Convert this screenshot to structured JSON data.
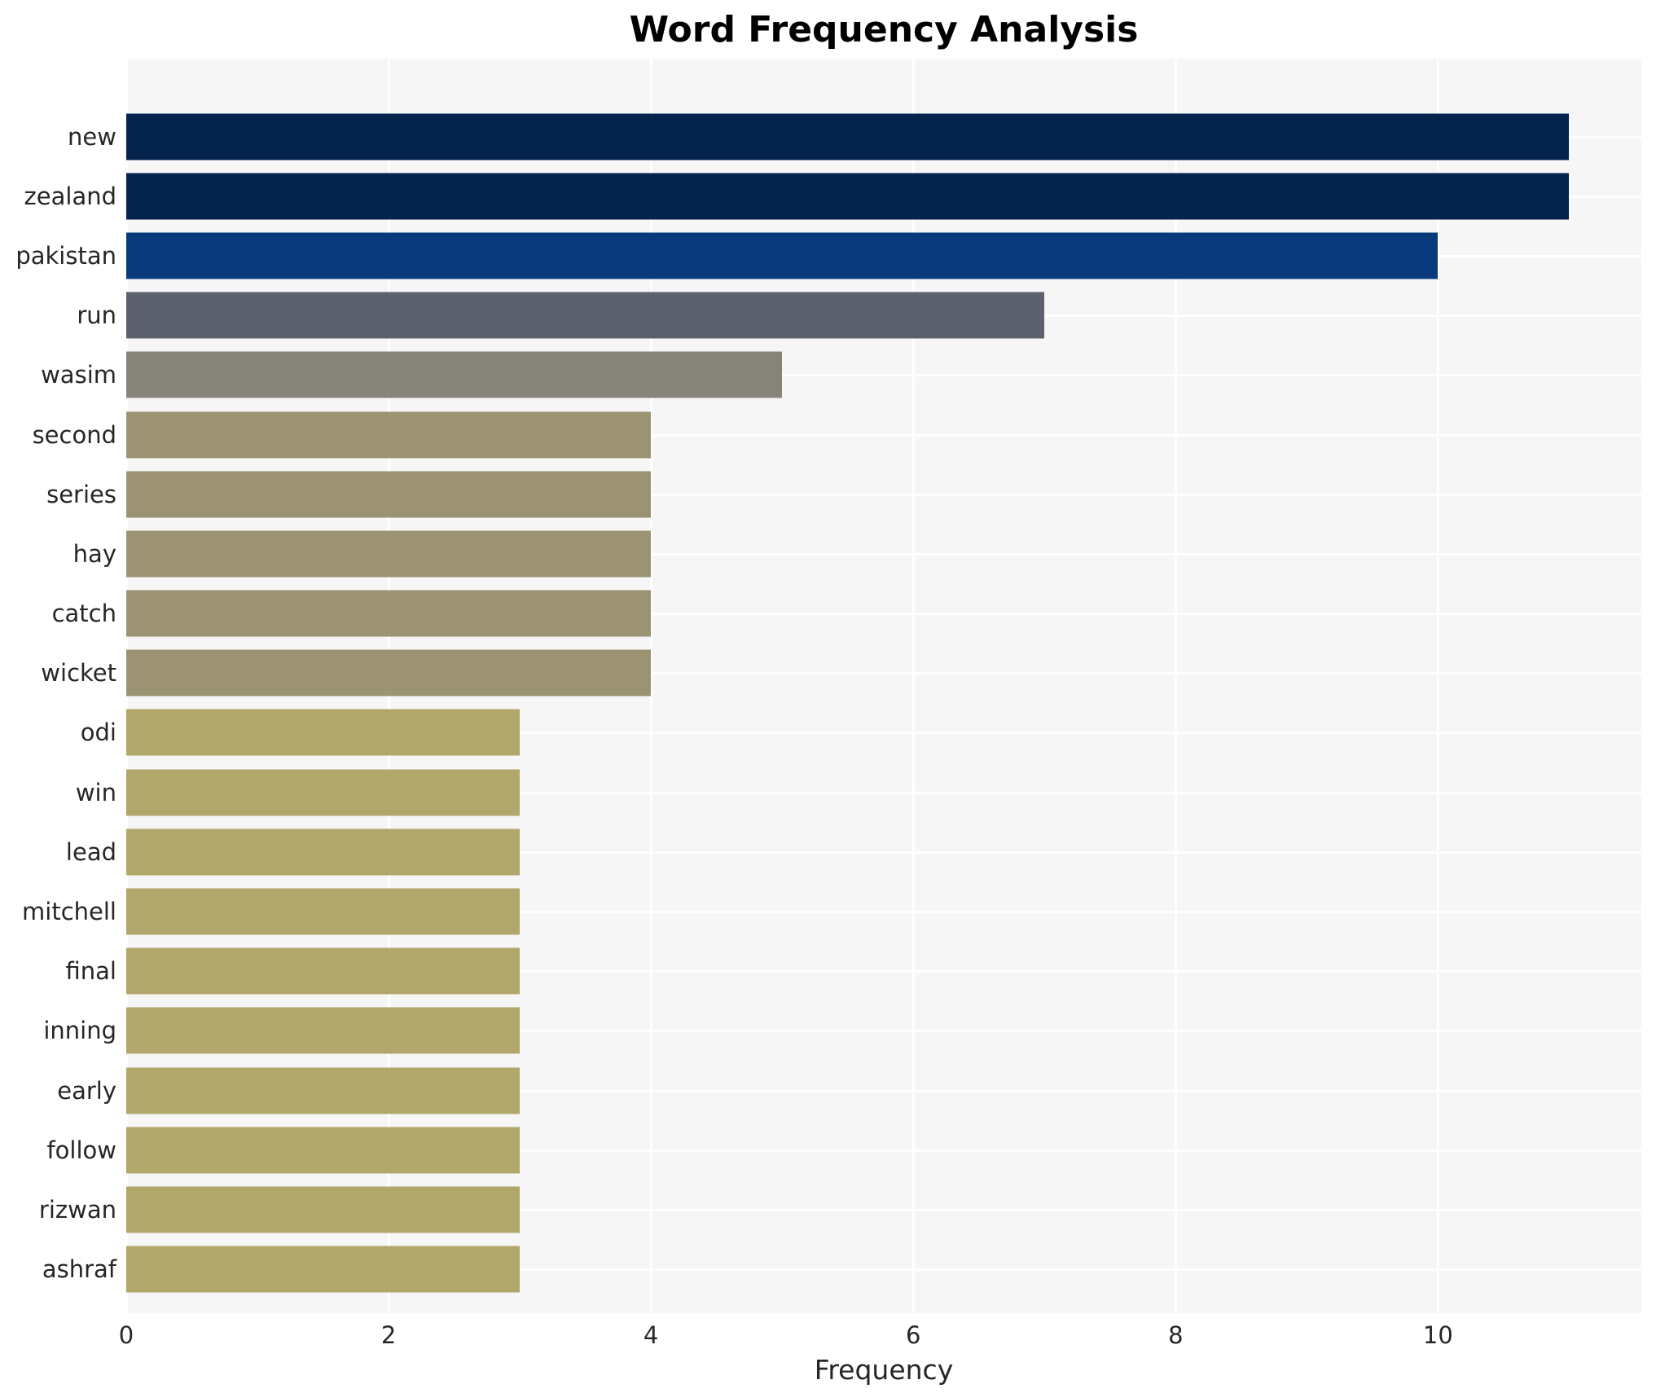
{
  "title": "Word Frequency Analysis",
  "chart_data": {
    "type": "bar",
    "orientation": "horizontal",
    "title": "Word Frequency Analysis",
    "xlabel": "Frequency",
    "ylabel": "",
    "categories": [
      "new",
      "zealand",
      "pakistan",
      "run",
      "wasim",
      "second",
      "series",
      "hay",
      "catch",
      "wicket",
      "odi",
      "win",
      "lead",
      "mitchell",
      "final",
      "inning",
      "early",
      "follow",
      "rizwan",
      "ashraf"
    ],
    "values": [
      11,
      11,
      10,
      7,
      5,
      4,
      4,
      4,
      4,
      4,
      3,
      3,
      3,
      3,
      3,
      3,
      3,
      3,
      3,
      3
    ],
    "bar_colors": [
      "#03234d",
      "#03234d",
      "#083a7c",
      "#5d616e",
      "#868479",
      "#9b9372",
      "#9b9372",
      "#9b9372",
      "#9b9372",
      "#9b9372",
      "#b2a76b",
      "#b2a76b",
      "#b2a76b",
      "#b2a76b",
      "#b2a76b",
      "#b2a76b",
      "#b2a76b",
      "#b2a76b",
      "#b2a76b",
      "#b2a76b"
    ],
    "xticks": [
      0,
      2,
      4,
      6,
      8,
      10
    ],
    "xlim": [
      0,
      11.55
    ],
    "grid": "on",
    "grid_color": "#ffffff",
    "plot_background": "#f6f6f7",
    "figure_background": "#ffffff",
    "legend": "none"
  }
}
